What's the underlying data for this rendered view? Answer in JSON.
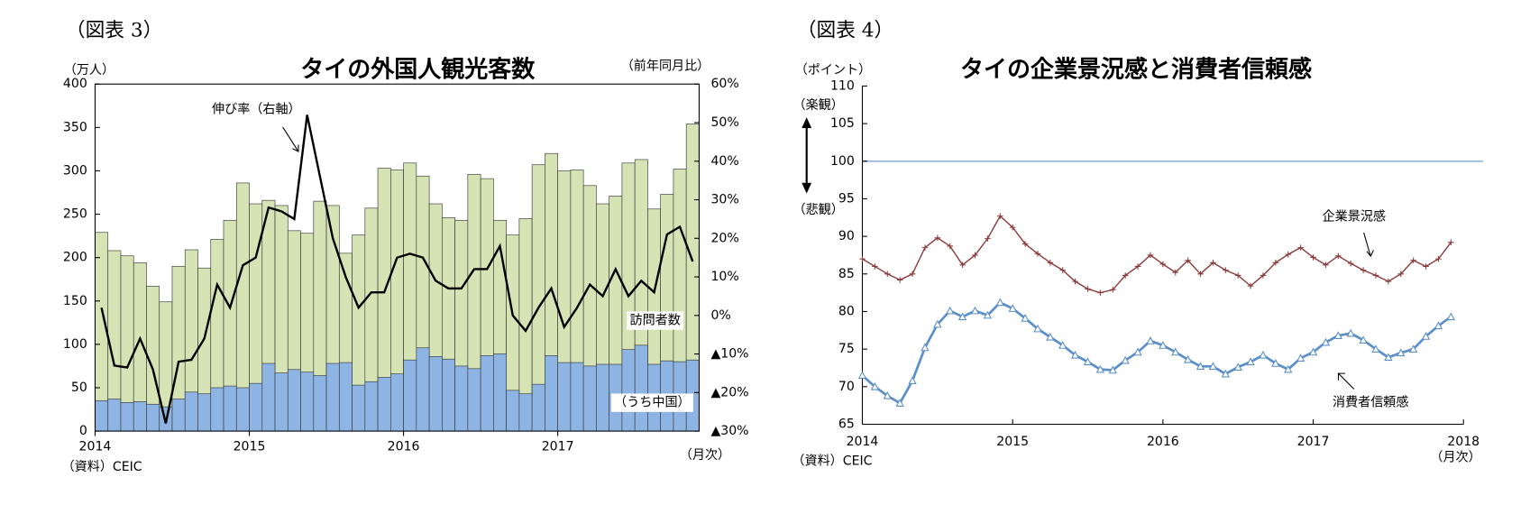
{
  "chart_data": [
    {
      "type": "combo",
      "figure_label": "（図表 3）",
      "title": "タイの外国人観光客数",
      "ylabel": "（万人）",
      "y2label": "（前年同月比）",
      "xlabel": "（月次）",
      "source": "（資料）CEIC",
      "categories": [
        "2014",
        null,
        null,
        null,
        null,
        null,
        null,
        null,
        null,
        null,
        null,
        null,
        "2015",
        null,
        null,
        null,
        null,
        null,
        null,
        null,
        null,
        null,
        null,
        null,
        "2016",
        null,
        null,
        null,
        null,
        null,
        null,
        null,
        null,
        null,
        null,
        null,
        "2017",
        null,
        null,
        null,
        null,
        null,
        null,
        null,
        null,
        null,
        null
      ],
      "series": [
        {
          "name": "訪問者数",
          "color": "#d5e3b5",
          "values": [
            229,
            208,
            202,
            194,
            167,
            149,
            190,
            209,
            188,
            221,
            243,
            286,
            262,
            266,
            260,
            231,
            228,
            265,
            260,
            205,
            226,
            257,
            303,
            301,
            309,
            294,
            262,
            246,
            243,
            296,
            291,
            243,
            226,
            245,
            307,
            320,
            300,
            301,
            283,
            262,
            271,
            309,
            313,
            256,
            273,
            302,
            354
          ]
        },
        {
          "name": "（うち中国）",
          "color": "#8eb4e3",
          "values": [
            35,
            37,
            33,
            34,
            31,
            28,
            37,
            45,
            43,
            50,
            52,
            50,
            55,
            78,
            67,
            71,
            68,
            64,
            78,
            79,
            53,
            57,
            62,
            66,
            82,
            96,
            86,
            83,
            75,
            72,
            87,
            89,
            47,
            43,
            54,
            87,
            79,
            79,
            75,
            77,
            77,
            94,
            99,
            77,
            81,
            80,
            82
          ]
        },
        {
          "name": "伸び率（右軸）",
          "color": "#000000",
          "axis": "y2",
          "values": [
            2,
            -13,
            -13.5,
            -6,
            -14,
            -28,
            -12,
            -11.5,
            -6,
            8,
            2,
            13,
            15,
            28,
            27,
            25,
            52,
            36,
            20,
            10,
            2,
            6,
            6,
            15,
            16,
            15,
            9,
            7,
            7,
            12,
            12,
            18,
            0,
            -4,
            2,
            7,
            -3,
            2,
            8,
            5,
            12,
            5,
            9,
            6,
            21,
            23,
            14
          ]
        }
      ],
      "ylim": [
        0,
        400
      ],
      "yticks": [
        0,
        50,
        100,
        150,
        200,
        250,
        300,
        350,
        400
      ],
      "y2lim": [
        -30,
        60
      ],
      "y2ticks": [
        {
          "value": 60,
          "label": "60%"
        },
        {
          "value": 50,
          "label": "50%"
        },
        {
          "value": 40,
          "label": "40%"
        },
        {
          "value": 30,
          "label": "30%"
        },
        {
          "value": 20,
          "label": "20%"
        },
        {
          "value": 10,
          "label": "10%"
        },
        {
          "value": 0,
          "label": "0%"
        },
        {
          "value": -10,
          "label": "▲10%"
        },
        {
          "value": -20,
          "label": "▲20%"
        },
        {
          "value": -30,
          "label": "▲30%"
        }
      ],
      "grid": false
    },
    {
      "type": "line",
      "figure_label": "（図表 4）",
      "title": "タイの企業景況感と消費者信頼感",
      "ylabel": "（ポイント）",
      "xlabel": "（月次）",
      "source": "（資料）CEIC",
      "annotations": [
        "（楽観）",
        "（悲観）"
      ],
      "xlim": [
        0,
        48
      ],
      "xticks": [
        {
          "value": 0,
          "label": "2014"
        },
        {
          "value": 12,
          "label": "2015"
        },
        {
          "value": 24,
          "label": "2016"
        },
        {
          "value": 36,
          "label": "2017"
        },
        {
          "value": 48,
          "label": "2018"
        }
      ],
      "ylim": [
        65,
        110
      ],
      "yticks": [
        65,
        70,
        75,
        80,
        85,
        90,
        95,
        100,
        105,
        110
      ],
      "reference_line": {
        "value": 100,
        "color": "#8eb4e3"
      },
      "series": [
        {
          "name": "企業景況感",
          "color": "#8b3a3a",
          "marker": "plus",
          "values": [
            87,
            86,
            85,
            84.2,
            85,
            88.5,
            89.8,
            88.7,
            86.2,
            87.5,
            89.7,
            92.7,
            91.2,
            89,
            87.7,
            86.5,
            85.5,
            84,
            83,
            82.5,
            82.9,
            84.8,
            86,
            87.5,
            86.3,
            85.2,
            86.8,
            85,
            86.5,
            85.5,
            84.8,
            83.4,
            84.8,
            86.5,
            87.6,
            88.5,
            87.2,
            86.2,
            87.4,
            86.4,
            85.5,
            84.8,
            84,
            85,
            86.8,
            86,
            87,
            89.2
          ]
        },
        {
          "name": "消費者信頼感",
          "color": "#5b8fc9",
          "marker": "triangle",
          "values": [
            71.5,
            70,
            68.8,
            67.8,
            70.8,
            75.2,
            78.3,
            80.1,
            79.3,
            80.1,
            79.5,
            81.2,
            80.4,
            79.1,
            77.7,
            76.6,
            75.5,
            74.2,
            73.3,
            72.3,
            72.2,
            73.5,
            74.6,
            76.1,
            75.5,
            74.6,
            73.6,
            72.7,
            72.7,
            71.7,
            72.6,
            73.3,
            74.2,
            73.1,
            72.3,
            73.8,
            74.6,
            75.9,
            76.8,
            77.1,
            76.2,
            75,
            73.9,
            74.5,
            75,
            76.7,
            78.1,
            79.3
          ]
        }
      ],
      "grid": false
    }
  ]
}
